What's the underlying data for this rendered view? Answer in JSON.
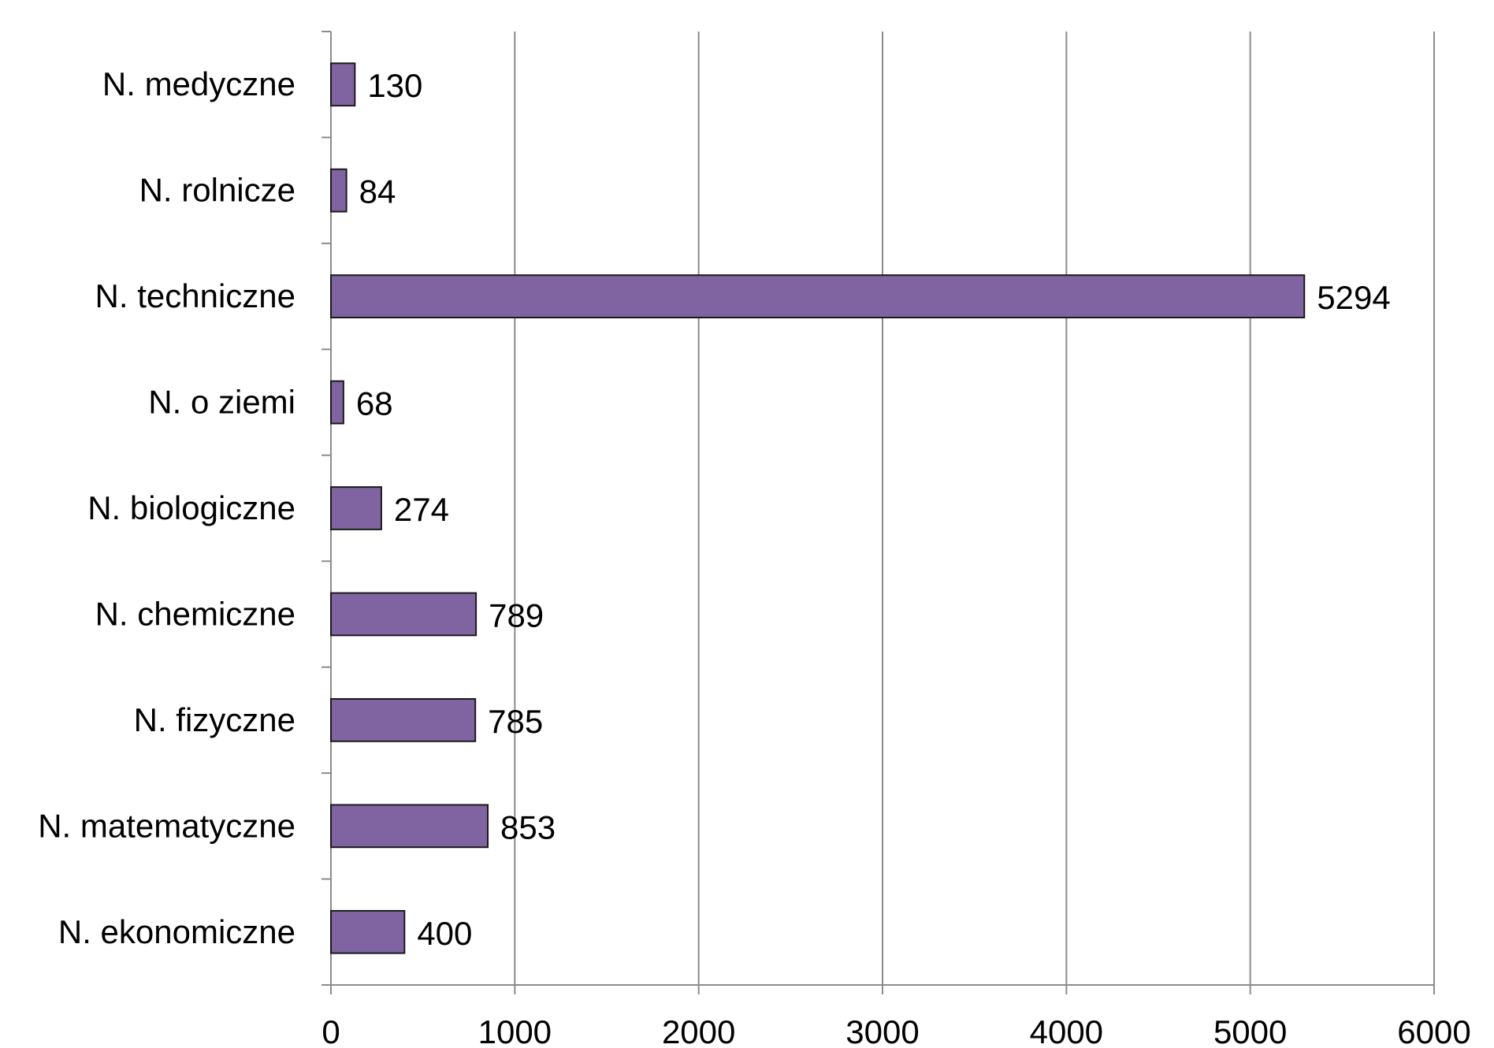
{
  "chart_data": {
    "type": "bar",
    "orientation": "horizontal",
    "title": "",
    "xlabel": "",
    "ylabel": "",
    "categories": [
      "N. medyczne",
      "N. rolnicze",
      "N. techniczne",
      "N. o ziemi",
      "N. biologiczne",
      "N. chemiczne",
      "N. fizyczne",
      "N. matematyczne",
      "N. ekonomiczne"
    ],
    "values": [
      130,
      84,
      5294,
      68,
      274,
      789,
      785,
      853,
      400
    ],
    "data_labels": [
      "130",
      "84",
      "5294",
      "68",
      "274",
      "789",
      "785",
      "853",
      "400"
    ],
    "xlim": [
      0,
      6000
    ],
    "x_ticks": [
      0,
      1000,
      2000,
      3000,
      4000,
      5000,
      6000
    ],
    "x_tick_labels": [
      "0",
      "1000",
      "2000",
      "3000",
      "4000",
      "5000",
      "6000"
    ],
    "grid": "vertical",
    "legend": "none",
    "colors": {
      "bar_fill": "#8064a2",
      "bar_stroke": "#1a1a1a",
      "grid": "#8c8c8c",
      "text": "#000000"
    }
  }
}
